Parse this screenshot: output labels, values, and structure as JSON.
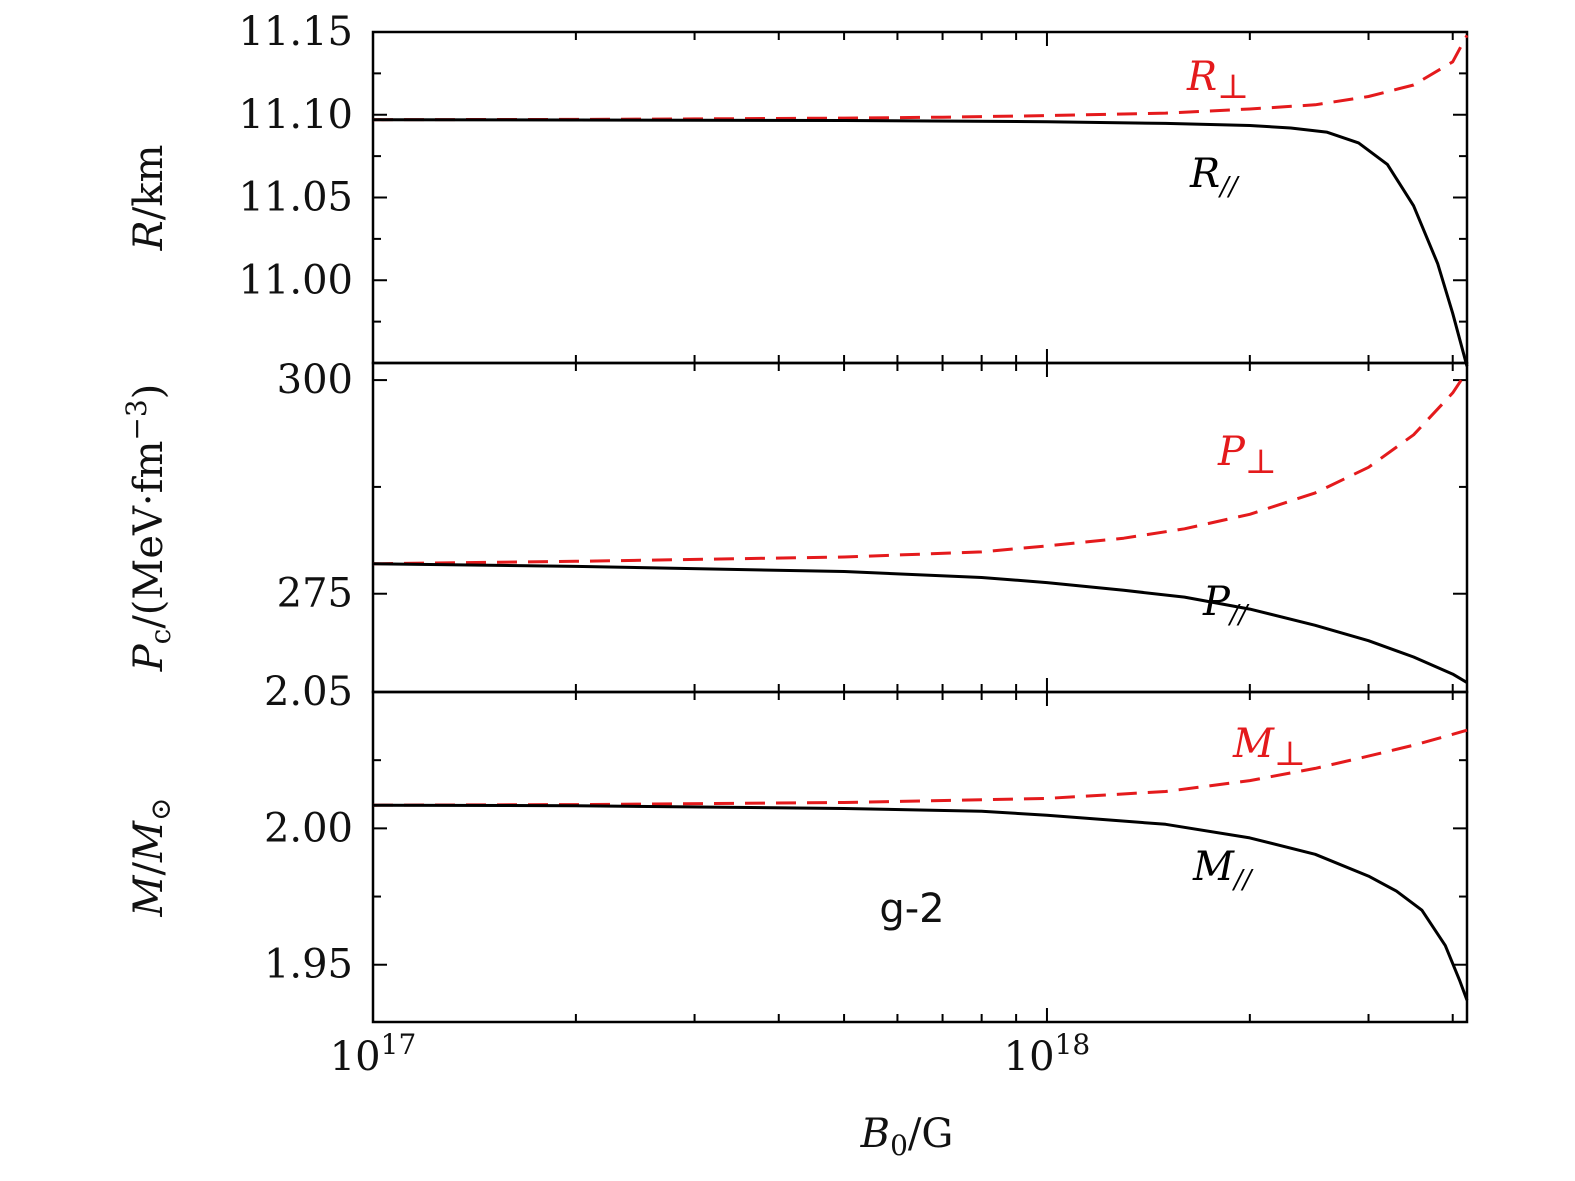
{
  "chart_data": {
    "type": "line",
    "x_scale": "log",
    "xlim": [
      1e+17,
      4.2e+18
    ],
    "xlabel": "B0/G",
    "x_tick_labels": [
      {
        "value": 1e+17,
        "base": "10",
        "exp": "17"
      },
      {
        "value": 1e+18,
        "base": "10",
        "exp": "18"
      }
    ],
    "annotation": "g-2",
    "panels": [
      {
        "id": "radius",
        "ylabel": "R/km",
        "ylim": [
          10.95,
          11.15
        ],
        "y_ticks": [
          11.0,
          11.05,
          11.1,
          11.15
        ],
        "y_tick_labels": [
          "11.00",
          "11.05",
          "11.10",
          "11.15"
        ],
        "series": [
          {
            "name": "R⊥",
            "color": "#e41a1c",
            "style": "dashed",
            "x": [
              1e+17,
              2e+17,
              3e+17,
              5e+17,
              7e+17,
              1e+18,
              1.5e+18,
              2e+18,
              2.5e+18,
              3e+18,
              3.5e+18,
              4e+18,
              4.2e+18
            ],
            "y": [
              11.097,
              11.0972,
              11.0975,
              11.098,
              11.0985,
              11.0995,
              11.101,
              11.1035,
              11.106,
              11.111,
              11.118,
              11.132,
              11.148
            ]
          },
          {
            "name": "R//",
            "color": "#000000",
            "style": "solid",
            "x": [
              1e+17,
              2e+17,
              5e+17,
              1e+18,
              1.5e+18,
              2e+18,
              2.3e+18,
              2.6e+18,
              2.9e+18,
              3.2e+18,
              3.5e+18,
              3.8e+18,
              4e+18,
              4.2e+18
            ],
            "y": [
              11.097,
              11.0968,
              11.0965,
              11.0958,
              11.0948,
              11.0935,
              11.092,
              11.0895,
              11.083,
              11.07,
              11.045,
              11.01,
              10.98,
              10.948
            ]
          }
        ]
      },
      {
        "id": "pressure",
        "ylabel": "Pc/(MeV·fm−3)",
        "ylim": [
          263.5,
          302
        ],
        "y_ticks": [
          275,
          300
        ],
        "y_tick_labels": [
          "275",
          "300"
        ],
        "series": [
          {
            "name": "P⊥",
            "color": "#e41a1c",
            "style": "dashed",
            "x": [
              1e+17,
              2e+17,
              5e+17,
              8e+17,
              1e+18,
              1.3e+18,
              1.6e+18,
              2e+18,
              2.5e+18,
              3e+18,
              3.5e+18,
              4e+18,
              4.2e+18
            ],
            "y": [
              278.5,
              278.8,
              279.3,
              279.9,
              280.6,
              281.5,
              282.6,
              284.3,
              286.8,
              289.8,
              293.6,
              298.5,
              301.0
            ]
          },
          {
            "name": "P//",
            "color": "#000000",
            "style": "solid",
            "x": [
              1e+17,
              2e+17,
              5e+17,
              8e+17,
              1e+18,
              1.3e+18,
              1.6e+18,
              2e+18,
              2.5e+18,
              3e+18,
              3.5e+18,
              4e+18,
              4.2e+18
            ],
            "y": [
              278.5,
              278.2,
              277.6,
              276.9,
              276.3,
              275.4,
              274.6,
              273.2,
              271.3,
              269.5,
              267.6,
              265.6,
              264.6
            ]
          }
        ]
      },
      {
        "id": "mass",
        "ylabel": "M/M⊙",
        "ylim": [
          1.929,
          2.05
        ],
        "y_ticks": [
          1.95,
          2.0,
          2.05
        ],
        "y_tick_labels": [
          "1.95",
          "2.00",
          "2.05"
        ],
        "series": [
          {
            "name": "M⊥",
            "color": "#e41a1c",
            "style": "dashed",
            "x": [
              1e+17,
              2e+17,
              5e+17,
              1e+18,
              1.5e+18,
              2e+18,
              2.5e+18,
              3e+18,
              3.5e+18,
              4e+18,
              4.2e+18
            ],
            "y": [
              2.0085,
              2.0087,
              2.0095,
              2.011,
              2.0135,
              2.0175,
              2.022,
              2.0265,
              2.0305,
              2.0345,
              2.036
            ]
          },
          {
            "name": "M//",
            "color": "#000000",
            "style": "solid",
            "x": [
              1e+17,
              2e+17,
              5e+17,
              8e+17,
              1e+18,
              1.5e+18,
              2e+18,
              2.5e+18,
              3e+18,
              3.3e+18,
              3.6e+18,
              3.9e+18,
              4.1e+18,
              4.2e+18
            ],
            "y": [
              2.0085,
              2.0083,
              2.0073,
              2.0063,
              2.0048,
              2.0015,
              1.9965,
              1.9905,
              1.9825,
              1.977,
              1.97,
              1.957,
              1.944,
              1.937
            ]
          }
        ]
      }
    ]
  }
}
